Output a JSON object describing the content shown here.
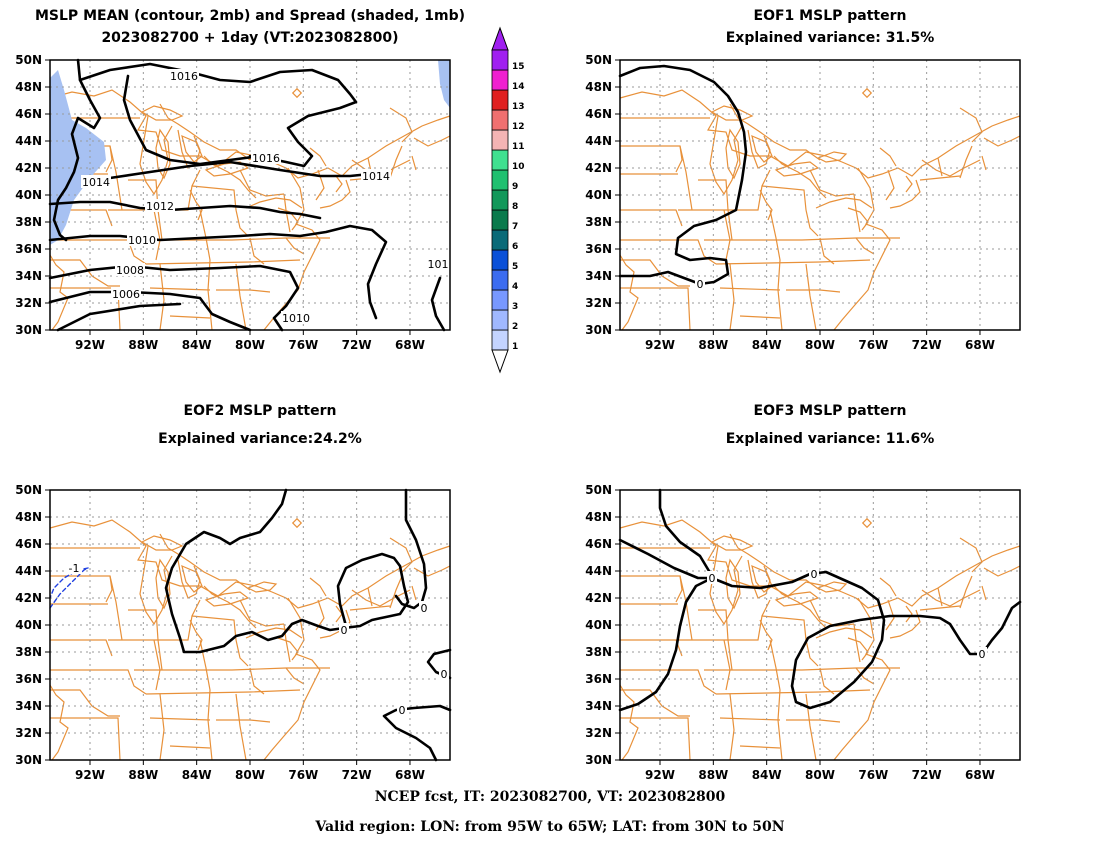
{
  "panels": [
    {
      "id": "mean",
      "title_lines": [
        "MSLP MEAN (contour, 2mb) and Spread (shaded, 1mb)",
        "2023082700 + 1day (VT:2023082800)"
      ],
      "contour_labels": [
        "1016",
        "1016",
        "1014",
        "1014",
        "1012",
        "1010",
        "1008",
        "1006",
        "1010",
        "101"
      ]
    },
    {
      "id": "eof1",
      "title_lines": [
        "EOF1 MSLP pattern",
        "Explained variance: 31.5%"
      ],
      "contour_labels": [
        "0"
      ]
    },
    {
      "id": "eof2",
      "title_lines": [
        "EOF2 MSLP pattern",
        "Explained variance:24.2%"
      ],
      "contour_labels": [
        "-1",
        "0",
        "0",
        "0",
        "0"
      ]
    },
    {
      "id": "eof3",
      "title_lines": [
        "EOF3 MSLP pattern",
        "Explained variance: 11.6%"
      ],
      "contour_labels": [
        "0",
        "0",
        "0"
      ]
    }
  ],
  "axes": {
    "lat_labels": [
      "50N",
      "48N",
      "46N",
      "44N",
      "42N",
      "40N",
      "38N",
      "36N",
      "34N",
      "32N",
      "30N"
    ],
    "lon_labels": [
      "92W",
      "88W",
      "84W",
      "80W",
      "76W",
      "72W",
      "68W"
    ]
  },
  "colorbar": {
    "labels": [
      "1",
      "2",
      "3",
      "4",
      "5",
      "6",
      "7",
      "8",
      "9",
      "10",
      "11",
      "12",
      "13",
      "14",
      "15"
    ],
    "colors": [
      "#c4d4ff",
      "#a0b8ff",
      "#7898ff",
      "#3c6cf0",
      "#0a50d8",
      "#0a6a78",
      "#0a7a4c",
      "#12985a",
      "#20c070",
      "#40e090",
      "#f4b4b4",
      "#f07070",
      "#e02020",
      "#f020d0",
      "#a020f0"
    ]
  },
  "footer": {
    "line1": "NCEP fcst, IT: 2023082700, VT: 2023082800",
    "line2": "Valid region: LON: from 95W to 65W; LAT: from 30N to 50N"
  },
  "colors": {
    "map_lines": "#e8913a",
    "contour": "#000000",
    "negative_contour": "#2040e0",
    "spread_shade": "#a7c1f2",
    "grid": "#9a9a9a"
  }
}
